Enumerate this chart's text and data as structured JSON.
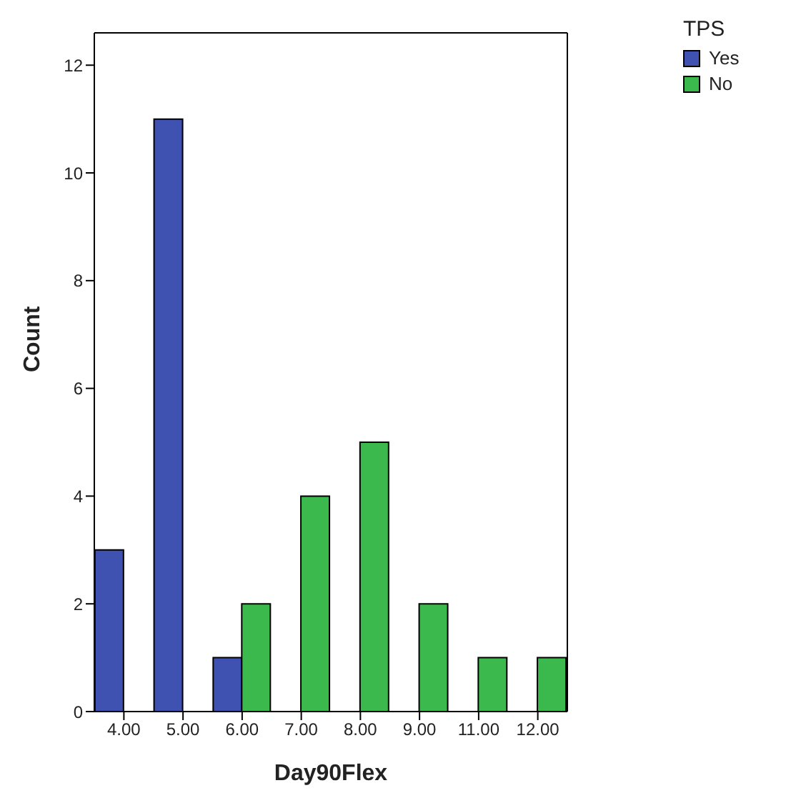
{
  "chart_data": {
    "type": "bar",
    "xlabel": "Day90Flex",
    "ylabel": "Count",
    "legend_title": "TPS",
    "categories": [
      "4.00",
      "5.00",
      "6.00",
      "7.00",
      "8.00",
      "9.00",
      "11.00",
      "12.00"
    ],
    "series": [
      {
        "name": "Yes",
        "color": "#3f51b1",
        "values": [
          3,
          11,
          1,
          null,
          null,
          null,
          null,
          null
        ]
      },
      {
        "name": "No",
        "color": "#3cb94c",
        "values": [
          null,
          null,
          2,
          4,
          5,
          2,
          1,
          1
        ]
      }
    ],
    "ylim": [
      0,
      12.6
    ],
    "yticks": [
      0,
      2,
      4,
      6,
      8,
      10,
      12
    ],
    "grid": false,
    "legend": "top right"
  }
}
